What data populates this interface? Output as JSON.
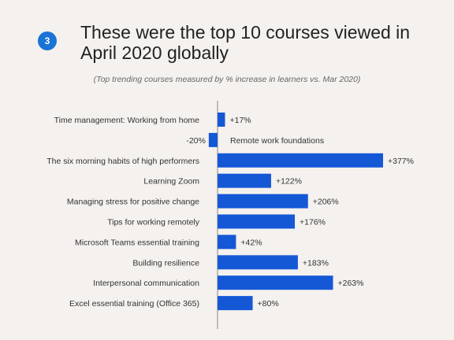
{
  "badge": "3",
  "title": "These were the top 10 courses viewed in April 2020 globally",
  "subtitle": "(Top trending courses measured by % increase in learners vs. Mar 2020)",
  "colors": {
    "bar": "#1558d6",
    "axis": "#888888",
    "text": "#333333",
    "background": "#f4f1ee",
    "badge": "#1a73d6"
  },
  "chart_data": {
    "type": "bar",
    "orientation": "horizontal",
    "title": "These were the top 10 courses viewed in April 2020 globally",
    "subtitle": "(Top trending courses measured by % increase in learners vs. Mar 2020)",
    "categories": [
      "Time management: Working from home",
      "Remote work foundations",
      "The six morning habits of high performers",
      "Learning Zoom",
      "Managing stress for positive change",
      "Tips for working remotely",
      "Microsoft Teams essential training",
      "Building resilience",
      "Interpersonal communication",
      "Excel essential training (Office 365)"
    ],
    "values": [
      17,
      -20,
      377,
      122,
      206,
      176,
      42,
      183,
      263,
      80
    ],
    "value_labels": [
      "+17%",
      "-20%",
      "+377%",
      "+122%",
      "+206%",
      "+176%",
      "+42%",
      "+183%",
      "+263%",
      "+80%"
    ],
    "unit": "%",
    "xlim": [
      -20,
      377
    ],
    "grid": false,
    "legend": "none"
  }
}
